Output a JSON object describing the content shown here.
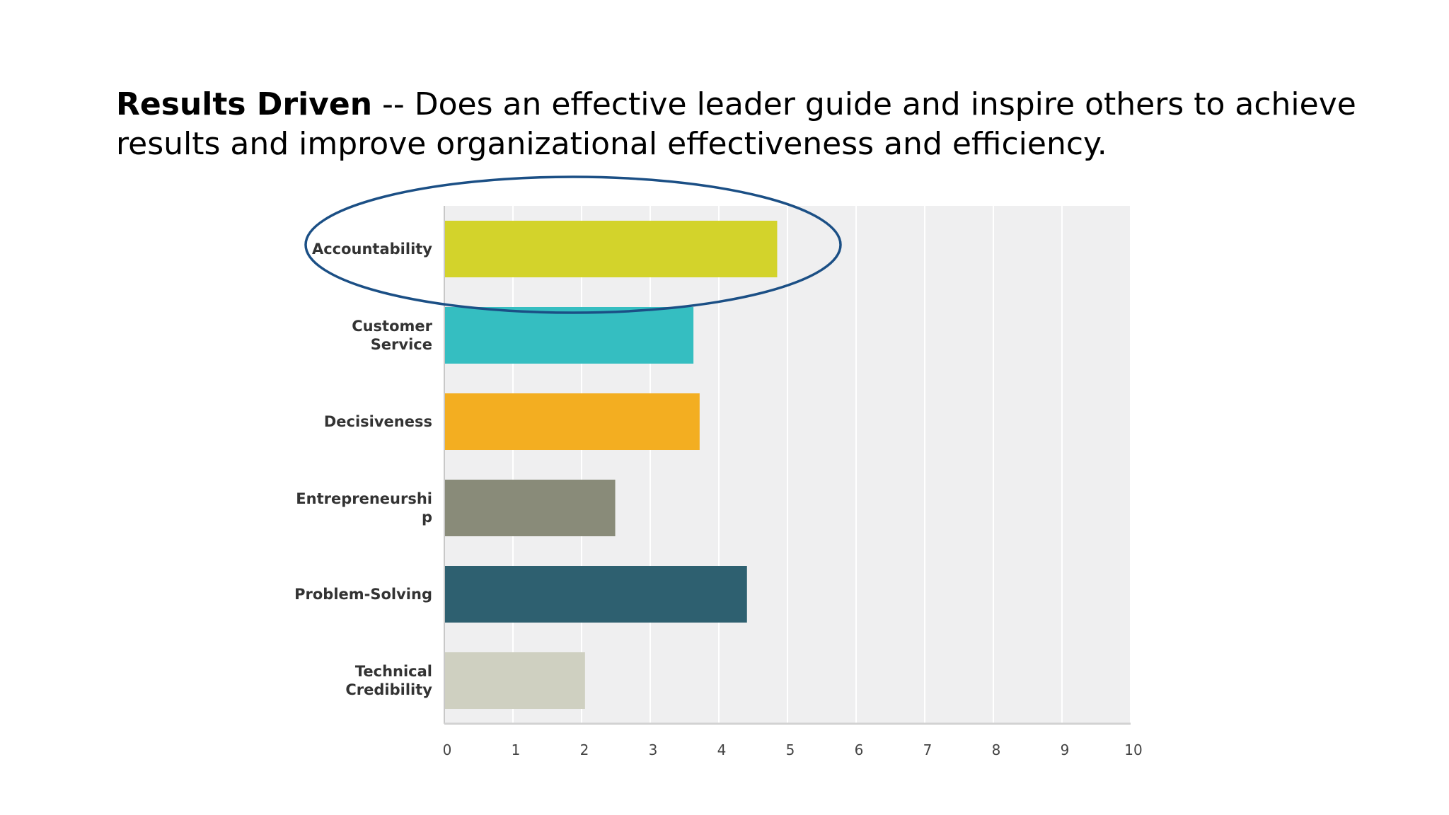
{
  "slide": {
    "heading_bold": "Results Driven",
    "heading_rest": " -- Does an effective leader guide and inspire others to achieve results and improve organizational effectiveness and efficiency."
  },
  "chart_data": {
    "type": "bar",
    "orientation": "horizontal",
    "categories": [
      "Accountability",
      "Customer Service",
      "Decisiveness",
      "Entrepreneurship",
      "Problem-Solving",
      "Technical Credibility"
    ],
    "category_label_lines": [
      [
        "Accountability"
      ],
      [
        "Customer",
        "Service"
      ],
      [
        "Decisiveness"
      ],
      [
        "Entrepreneurshi",
        "p"
      ],
      [
        "Problem-Solving"
      ],
      [
        "Technical",
        "Credibility"
      ]
    ],
    "values": [
      4.85,
      3.63,
      3.72,
      2.49,
      4.41,
      2.05
    ],
    "colors": [
      "#d3d32b",
      "#35bec1",
      "#f3ae21",
      "#898b79",
      "#2e6070",
      "#cfd0c1"
    ],
    "xlim": [
      0,
      10
    ],
    "xticks": [
      0,
      1,
      2,
      3,
      4,
      5,
      6,
      7,
      8,
      9,
      10
    ],
    "grid": true,
    "highlighted_category": "Accountability",
    "highlight_color": "#1b4f85"
  }
}
